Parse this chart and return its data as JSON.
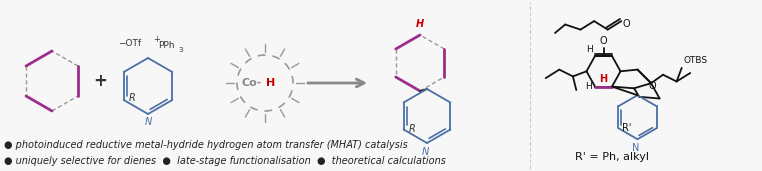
{
  "bg_color": "#f7f7f7",
  "figsize": [
    7.62,
    1.71
  ],
  "dpi": 100,
  "text_color": "#222222",
  "bullet_color": "#444444",
  "dashed_color": "#999999",
  "diene_color": "#9b2f8a",
  "pyridine_color": "#4a6fa5",
  "co_color": "#888888",
  "co_h_color": "#cc0000",
  "arrow_color": "#888888",
  "product_h_color": "#cc0000",
  "product_ring_color": "#9b2f8a",
  "line1": "● photoinduced reductive metal-hydride hydrogen atom transfer (MHAT) catalysis",
  "line2": "● uniquely selective for dienes  ●  late-stage functionalisation  ●  theoretical calculations",
  "r_prime_label": "R' = Ph, alkyl"
}
